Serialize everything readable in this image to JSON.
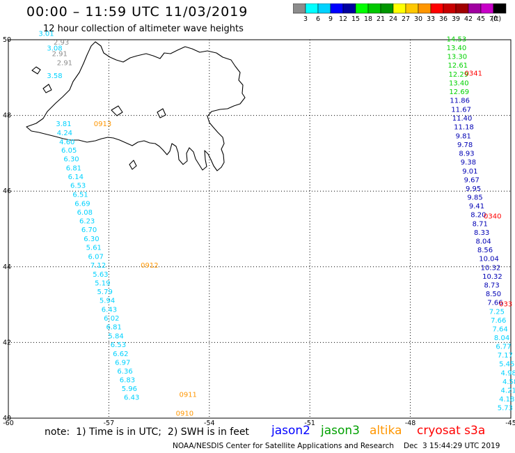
{
  "header": {
    "title": "00:00 – 11:59 UTC 11/03/2019",
    "subtitle": "12 hour collection of altimeter wave heights"
  },
  "colorbar": {
    "colors": [
      "#8c8c8c",
      "#00ffff",
      "#00d2ff",
      "#0000ff",
      "#0000a0",
      "#00ff00",
      "#00c800",
      "#009600",
      "#ffff00",
      "#ffc800",
      "#ff9600",
      "#ff0000",
      "#c80000",
      "#a00000",
      "#a000a0",
      "#c800c8",
      "#000000"
    ],
    "labels": [
      "3",
      "6",
      "9",
      "12",
      "15",
      "18",
      "21",
      "24",
      "27",
      "30",
      "33",
      "36",
      "39",
      "42",
      "45",
      "70"
    ],
    "unit": "(ft)"
  },
  "chart_data": {
    "type": "scatter",
    "title": "00:00 – 11:59 UTC 11/03/2019",
    "subtitle": "12 hour collection of altimeter wave heights",
    "xlim": [
      -60,
      -45
    ],
    "ylim": [
      40,
      50
    ],
    "x_ticks": [
      "-60",
      "-57",
      "-54",
      "-51",
      "-48",
      "-45"
    ],
    "y_ticks": [
      "50",
      "48",
      "46",
      "44",
      "42",
      "40"
    ],
    "y_tick_values": [
      50,
      48,
      46,
      44,
      42,
      40
    ],
    "grid": true,
    "series": [
      {
        "name": "west track (gray)",
        "color": "#8c8c8c",
        "points": [
          {
            "lon": -58.65,
            "lat": 49.87,
            "v": "2.93"
          },
          {
            "lon": -58.7,
            "lat": 49.57,
            "v": "2.91"
          },
          {
            "lon": -58.55,
            "lat": 49.33,
            "v": "2.91"
          }
        ]
      },
      {
        "name": "west track (cyan)",
        "color": "#00d2ff",
        "points": [
          {
            "lon": -59.1,
            "lat": 50.1,
            "v": "3.01"
          },
          {
            "lon": -58.85,
            "lat": 49.71,
            "v": "3.08"
          },
          {
            "lon": -58.85,
            "lat": 48.99,
            "v": "3.58"
          },
          {
            "lon": -58.58,
            "lat": 47.72,
            "v": "3.81"
          },
          {
            "lon": -58.55,
            "lat": 47.48,
            "v": "4.24"
          },
          {
            "lon": -58.48,
            "lat": 47.24,
            "v": "4.60"
          },
          {
            "lon": -58.42,
            "lat": 47.02,
            "v": "6.05"
          },
          {
            "lon": -58.35,
            "lat": 46.79,
            "v": "6.30"
          },
          {
            "lon": -58.28,
            "lat": 46.55,
            "v": "6.81"
          },
          {
            "lon": -58.22,
            "lat": 46.32,
            "v": "6.14"
          },
          {
            "lon": -58.15,
            "lat": 46.09,
            "v": "6.53"
          },
          {
            "lon": -58.08,
            "lat": 45.85,
            "v": "6.51"
          },
          {
            "lon": -58.02,
            "lat": 45.61,
            "v": "6.69"
          },
          {
            "lon": -57.95,
            "lat": 45.38,
            "v": "6.08"
          },
          {
            "lon": -57.88,
            "lat": 45.15,
            "v": "6.23"
          },
          {
            "lon": -57.82,
            "lat": 44.92,
            "v": "6.70"
          },
          {
            "lon": -57.75,
            "lat": 44.68,
            "v": "6.30"
          },
          {
            "lon": -57.68,
            "lat": 44.45,
            "v": "5.61"
          },
          {
            "lon": -57.62,
            "lat": 44.21,
            "v": "6.07"
          },
          {
            "lon": -57.55,
            "lat": 43.98,
            "v": "7.12"
          },
          {
            "lon": -57.48,
            "lat": 43.74,
            "v": "5.63"
          },
          {
            "lon": -57.42,
            "lat": 43.51,
            "v": "5.19"
          },
          {
            "lon": -57.35,
            "lat": 43.28,
            "v": "5.79"
          },
          {
            "lon": -57.28,
            "lat": 43.05,
            "v": "5.94"
          },
          {
            "lon": -57.22,
            "lat": 42.81,
            "v": "6.43"
          },
          {
            "lon": -57.15,
            "lat": 42.58,
            "v": "6.02"
          },
          {
            "lon": -57.08,
            "lat": 42.35,
            "v": "6.81"
          },
          {
            "lon": -57.02,
            "lat": 42.11,
            "v": "5.84"
          },
          {
            "lon": -56.95,
            "lat": 41.88,
            "v": "6.53"
          },
          {
            "lon": -56.88,
            "lat": 41.64,
            "v": "6.62"
          },
          {
            "lon": -56.82,
            "lat": 41.41,
            "v": "6.97"
          },
          {
            "lon": -56.75,
            "lat": 41.18,
            "v": "6.36"
          },
          {
            "lon": -56.68,
            "lat": 40.95,
            "v": "6.83"
          },
          {
            "lon": -56.62,
            "lat": 40.72,
            "v": "5.96"
          },
          {
            "lon": -56.55,
            "lat": 40.49,
            "v": "6.43"
          }
        ]
      },
      {
        "name": "east track (green)",
        "color": "#00d200",
        "points": [
          {
            "lon": -46.92,
            "lat": 49.95,
            "v": "14.53"
          },
          {
            "lon": -46.92,
            "lat": 49.72,
            "v": "13.40"
          },
          {
            "lon": -46.9,
            "lat": 49.49,
            "v": "13.30"
          },
          {
            "lon": -46.88,
            "lat": 49.26,
            "v": "12.61"
          },
          {
            "lon": -46.86,
            "lat": 49.02,
            "v": "12.29"
          },
          {
            "lon": -46.85,
            "lat": 48.79,
            "v": "13.40"
          },
          {
            "lon": -46.84,
            "lat": 48.56,
            "v": "12.69"
          }
        ]
      },
      {
        "name": "east track (navy)",
        "color": "#0000b4",
        "points": [
          {
            "lon": -46.82,
            "lat": 48.33,
            "v": "11.86"
          },
          {
            "lon": -46.78,
            "lat": 48.09,
            "v": "11.67"
          },
          {
            "lon": -46.75,
            "lat": 47.86,
            "v": "11.40"
          },
          {
            "lon": -46.7,
            "lat": 47.63,
            "v": "11.18"
          },
          {
            "lon": -46.65,
            "lat": 47.39,
            "v": "9.81"
          },
          {
            "lon": -46.6,
            "lat": 47.16,
            "v": "9.78"
          },
          {
            "lon": -46.55,
            "lat": 46.93,
            "v": "8.93"
          },
          {
            "lon": -46.5,
            "lat": 46.7,
            "v": "9.38"
          },
          {
            "lon": -46.45,
            "lat": 46.46,
            "v": "9.01"
          },
          {
            "lon": -46.4,
            "lat": 46.23,
            "v": "9.67"
          },
          {
            "lon": -46.35,
            "lat": 46.0,
            "v": "9.95"
          },
          {
            "lon": -46.3,
            "lat": 45.77,
            "v": "9.85"
          },
          {
            "lon": -46.25,
            "lat": 45.54,
            "v": "9.41"
          },
          {
            "lon": -46.2,
            "lat": 45.31,
            "v": "8.20"
          },
          {
            "lon": -46.15,
            "lat": 45.07,
            "v": "8.71"
          },
          {
            "lon": -46.1,
            "lat": 44.84,
            "v": "8.33"
          },
          {
            "lon": -46.05,
            "lat": 44.61,
            "v": "8.04"
          },
          {
            "lon": -46.0,
            "lat": 44.38,
            "v": "8.56"
          },
          {
            "lon": -45.95,
            "lat": 44.15,
            "v": "10.04"
          },
          {
            "lon": -45.9,
            "lat": 43.91,
            "v": "10.32"
          },
          {
            "lon": -45.85,
            "lat": 43.68,
            "v": "10.32"
          },
          {
            "lon": -45.8,
            "lat": 43.45,
            "v": "8.73"
          },
          {
            "lon": -45.75,
            "lat": 43.22,
            "v": "8.50"
          },
          {
            "lon": -45.7,
            "lat": 42.99,
            "v": "7.66"
          }
        ]
      },
      {
        "name": "east track (cyan)",
        "color": "#00d2ff",
        "points": [
          {
            "lon": -45.65,
            "lat": 42.75,
            "v": "7.25"
          },
          {
            "lon": -45.6,
            "lat": 42.52,
            "v": "7.66"
          },
          {
            "lon": -45.55,
            "lat": 42.29,
            "v": "7.64"
          },
          {
            "lon": -45.5,
            "lat": 42.06,
            "v": "8.04"
          },
          {
            "lon": -45.45,
            "lat": 41.83,
            "v": "6.77"
          },
          {
            "lon": -45.4,
            "lat": 41.6,
            "v": "7.17"
          },
          {
            "lon": -45.35,
            "lat": 41.37,
            "v": "5.45"
          },
          {
            "lon": -45.3,
            "lat": 41.13,
            "v": "4.98"
          },
          {
            "lon": -45.25,
            "lat": 40.9,
            "v": "4.58"
          },
          {
            "lon": -45.3,
            "lat": 40.67,
            "v": "4.21"
          },
          {
            "lon": -45.35,
            "lat": 40.44,
            "v": "4.18"
          },
          {
            "lon": -45.4,
            "lat": 40.21,
            "v": "5.73"
          }
        ]
      },
      {
        "name": "time stamps",
        "color": "#ff9600",
        "points": [
          {
            "lon": -57.45,
            "lat": 47.72,
            "v": "0913"
          },
          {
            "lon": -56.05,
            "lat": 43.98,
            "v": "0912"
          },
          {
            "lon": -54.9,
            "lat": 40.56,
            "v": "0911"
          },
          {
            "lon": -55.0,
            "lat": 40.06,
            "v": "0910"
          }
        ]
      },
      {
        "name": "cryosat time stamps",
        "color": "#ff0000",
        "points": [
          {
            "lon": -46.38,
            "lat": 49.05,
            "v": "0341"
          },
          {
            "lon": -45.81,
            "lat": 45.28,
            "v": "0340"
          },
          {
            "lon": -45.35,
            "lat": 42.96,
            "v": "033"
          }
        ]
      }
    ]
  },
  "footer": {
    "note": "note:  1) Time is in UTC;  2) SWH is in feet",
    "satellites": [
      {
        "name": "jason2",
        "color": "#0000ff"
      },
      {
        "name": "jason3",
        "color": "#00a000"
      },
      {
        "name": "altika",
        "color": "#ff9600"
      },
      {
        "name": "cryosat s3a",
        "color": "#ff0000"
      }
    ],
    "credit": "NOAA/NESDIS Center for Satellite Applications and Research",
    "timestamp": "Dec  3 15:44:29 UTC 2019"
  }
}
